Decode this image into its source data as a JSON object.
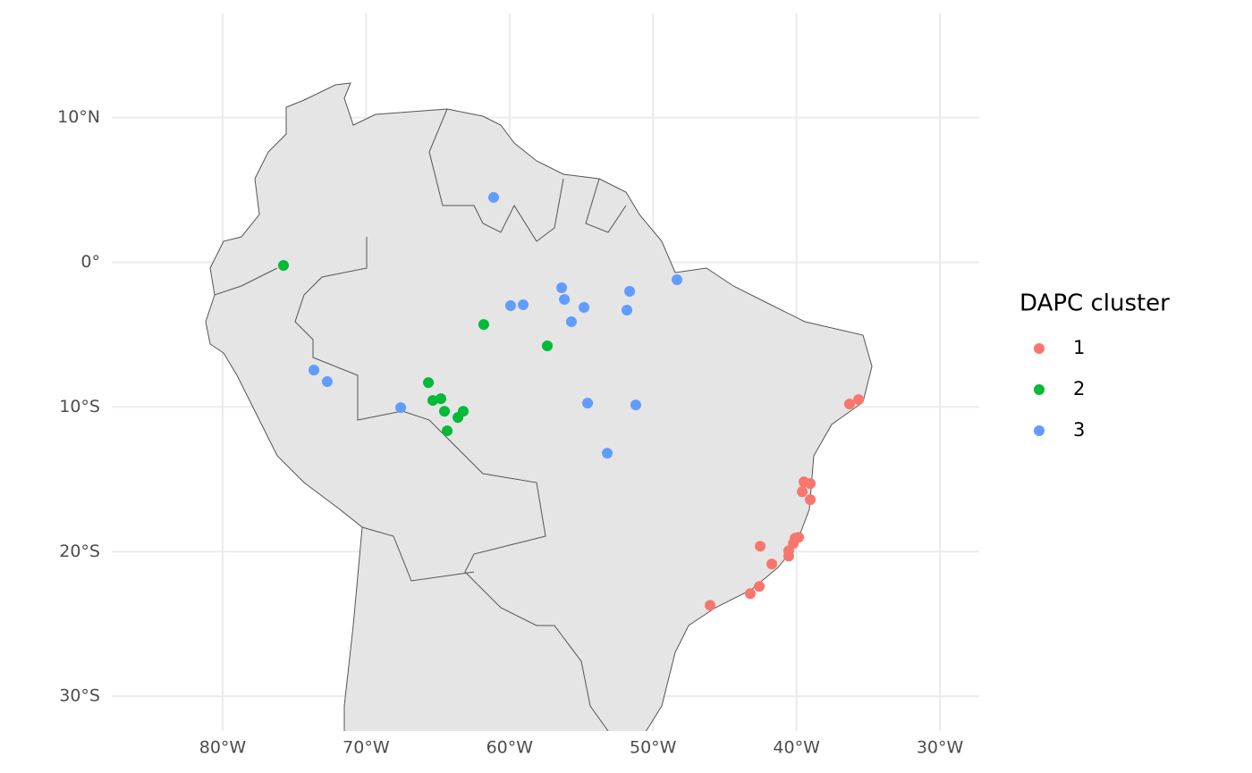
{
  "chart_data": {
    "type": "scatter",
    "legend_title": "DAPC cluster",
    "legend_position": "right",
    "grid": true,
    "xlim": [
      -87.73,
      -27.26
    ],
    "ylim": [
      -32.4,
      17.2
    ],
    "xticks": [
      {
        "value": -80,
        "label": "80°W"
      },
      {
        "value": -70,
        "label": "70°W"
      },
      {
        "value": -60,
        "label": "60°W"
      },
      {
        "value": -50,
        "label": "50°W"
      },
      {
        "value": -40,
        "label": "40°W"
      },
      {
        "value": -30,
        "label": "30°W"
      }
    ],
    "yticks": [
      {
        "value": 10,
        "label": "10°N"
      },
      {
        "value": 0,
        "label": "0°"
      },
      {
        "value": -10,
        "label": "10°S"
      },
      {
        "value": -20,
        "label": "20°S"
      },
      {
        "value": -30,
        "label": "30°S"
      }
    ],
    "series": [
      {
        "name": "1",
        "color": "#F8766D",
        "x": [
          -36.3,
          -35.67,
          -39.48,
          -39.04,
          -39.6,
          -39.04,
          -42.53,
          -40.1,
          -39.85,
          -40.22,
          -40.54,
          -40.54,
          -41.72,
          -42.59,
          -43.22,
          -46.02
        ],
        "y": [
          -9.8,
          -9.49,
          -15.18,
          -15.3,
          -15.86,
          -16.41,
          -19.63,
          -19.07,
          -19.01,
          -19.44,
          -19.94,
          -20.31,
          -20.86,
          -22.41,
          -22.9,
          -23.71
        ]
      },
      {
        "name": "2",
        "color": "#00BA38",
        "x": [
          -75.76,
          -61.8,
          -57.37,
          -65.66,
          -65.35,
          -64.79,
          -64.54,
          -63.23,
          -63.6,
          -64.35
        ],
        "y": [
          -0.22,
          -4.3,
          -5.78,
          -8.32,
          -9.55,
          -9.43,
          -10.3,
          -10.3,
          -10.73,
          -11.65
        ]
      },
      {
        "name": "3",
        "color": "#619CFF",
        "x": [
          -61.11,
          -59.93,
          -59.05,
          -56.37,
          -56.18,
          -55.69,
          -54.81,
          -51.63,
          -51.82,
          -48.33,
          -73.64,
          -72.71,
          -67.59,
          -54.56,
          -51.2,
          -53.19
        ],
        "y": [
          4.48,
          -3.0,
          -2.94,
          -1.76,
          -2.57,
          -4.11,
          -3.12,
          -2.01,
          -3.31,
          -1.21,
          -7.45,
          -8.25,
          -10.05,
          -9.74,
          -9.86,
          -13.2
        ]
      }
    ]
  }
}
